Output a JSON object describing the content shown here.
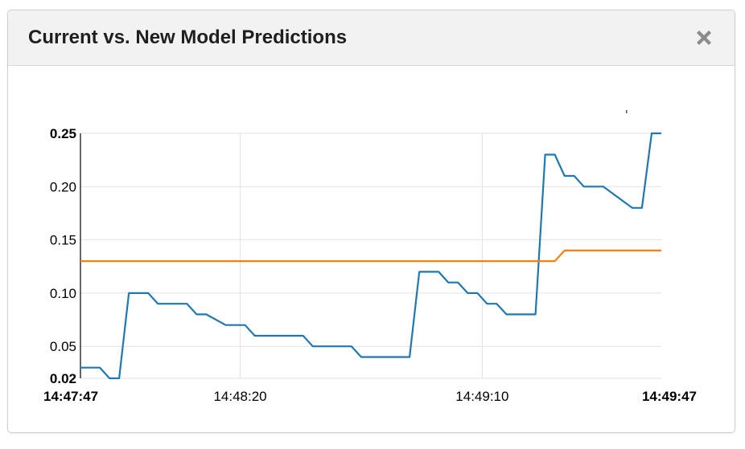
{
  "panel": {
    "title": "Current vs. New Model Predictions",
    "close_icon": "close-icon"
  },
  "colors": {
    "series_current": "#1f77b4",
    "series_new": "#ff7f0e",
    "grid": "#e2e2e2",
    "axis": "#000000"
  },
  "chart_data": {
    "type": "line",
    "title": "",
    "xlabel": "",
    "ylabel": "",
    "ylim": [
      0.02,
      0.25
    ],
    "xlim": [
      "14:47:47",
      "14:49:47"
    ],
    "grid": true,
    "y_ticks": [
      {
        "value": 0.25,
        "label": "0.25",
        "bold": true
      },
      {
        "value": 0.2,
        "label": "0.20",
        "bold": false
      },
      {
        "value": 0.15,
        "label": "0.15",
        "bold": false
      },
      {
        "value": 0.1,
        "label": "0.10",
        "bold": false
      },
      {
        "value": 0.05,
        "label": "0.05",
        "bold": false
      },
      {
        "value": 0.02,
        "label": "0.02",
        "bold": true
      }
    ],
    "x_ticks": [
      {
        "t": 0,
        "label": "14:47:47",
        "bold": true
      },
      {
        "t": 33,
        "label": "14:48:20",
        "bold": false
      },
      {
        "t": 83,
        "label": "14:49:10",
        "bold": false
      },
      {
        "t": 120,
        "label": "14:49:47",
        "bold": true
      }
    ],
    "series": [
      {
        "key": "current",
        "x_seconds_from_14_47_47": [
          0,
          4,
          6,
          8,
          10,
          14,
          16,
          22,
          24,
          26,
          30,
          32,
          34,
          36,
          38,
          40,
          42,
          46,
          48,
          50,
          52,
          56,
          58,
          62,
          64,
          68,
          70,
          74,
          76,
          78,
          80,
          82,
          84,
          86,
          88,
          92,
          94,
          96,
          98,
          100,
          102,
          104,
          106,
          108,
          114,
          116,
          118,
          119,
          120
        ],
        "values": [
          0.03,
          0.03,
          0.02,
          0.02,
          0.1,
          0.1,
          0.09,
          0.09,
          0.08,
          0.08,
          0.07,
          0.07,
          0.07,
          0.06,
          0.06,
          0.06,
          0.06,
          0.06,
          0.05,
          0.05,
          0.05,
          0.05,
          0.04,
          0.04,
          0.04,
          0.04,
          0.12,
          0.12,
          0.11,
          0.11,
          0.1,
          0.1,
          0.09,
          0.09,
          0.08,
          0.08,
          0.08,
          0.23,
          0.23,
          0.21,
          0.21,
          0.2,
          0.2,
          0.2,
          0.18,
          0.18,
          0.25,
          0.25,
          0.25
        ]
      },
      {
        "key": "new",
        "x_seconds_from_14_47_47": [
          0,
          98,
          100,
          120
        ],
        "values": [
          0.13,
          0.13,
          0.14,
          0.14
        ]
      }
    ]
  }
}
